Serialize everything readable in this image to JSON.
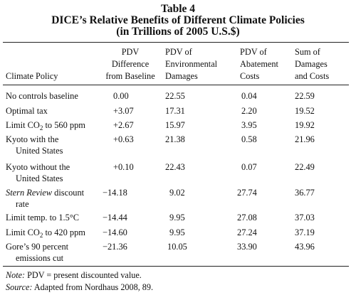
{
  "table": {
    "title_line1": "Table 4",
    "title_line2": "DICE’s Relative Benefits of Different Climate Policies",
    "title_line3": "(in Trillions of 2005 U.S.$)",
    "headers": {
      "policy": "Climate Policy",
      "pdv_diff": [
        "PDV",
        "Difference",
        "from Baseline"
      ],
      "pdv_env": [
        "PDV of",
        "Environmental",
        "Damages"
      ],
      "pdv_abate": [
        "PDV of",
        "Abatement",
        "Costs"
      ],
      "sum": [
        "Sum of",
        "Damages",
        "and Costs"
      ]
    },
    "rows": [
      {
        "policy": [
          "No controls baseline"
        ],
        "diff": "0.00",
        "env": "22.55",
        "abate": "0.04",
        "sum": "22.59"
      },
      {
        "policy": [
          "Optimal tax"
        ],
        "diff": "+3.07",
        "env": "17.31",
        "abate": "2.20",
        "sum": "19.52"
      },
      {
        "policy": [
          "Limit CO",
          "2",
          " to 560 ppm"
        ],
        "diff": "+2.67",
        "env": "15.97",
        "abate": "3.95",
        "sum": "19.92"
      },
      {
        "policy": [
          "Kyoto with the",
          "United States"
        ],
        "diff": "+0.63",
        "env": "21.38",
        "abate": "0.58",
        "sum": "21.96"
      },
      {
        "policy": [
          "Kyoto without the",
          "United States"
        ],
        "diff": "+0.10",
        "env": "22.43",
        "abate": "0.07",
        "sum": "22.49"
      },
      {
        "policy": [
          "Stern Review",
          " discount",
          "rate"
        ],
        "diff": "−14.18",
        "env": "9.02",
        "abate": "27.74",
        "sum": "36.77"
      },
      {
        "policy": [
          "Limit temp. to 1.5°C"
        ],
        "diff": "−14.44",
        "env": "9.95",
        "abate": "27.08",
        "sum": "37.03"
      },
      {
        "policy": [
          "Limit CO",
          "2",
          " to 420 ppm"
        ],
        "diff": "−14.60",
        "env": "9.95",
        "abate": "27.24",
        "sum": "37.19"
      },
      {
        "policy": [
          "Gore’s 90 percent",
          "emissions cut"
        ],
        "diff": "−21.36",
        "env": "10.05",
        "abate": "33.90",
        "sum": "43.96"
      }
    ],
    "note_label": "Note:",
    "note_text": " PDV = present discounted value.",
    "source_label": "Source:",
    "source_text": " Adapted from Nordhaus 2008, 89."
  }
}
